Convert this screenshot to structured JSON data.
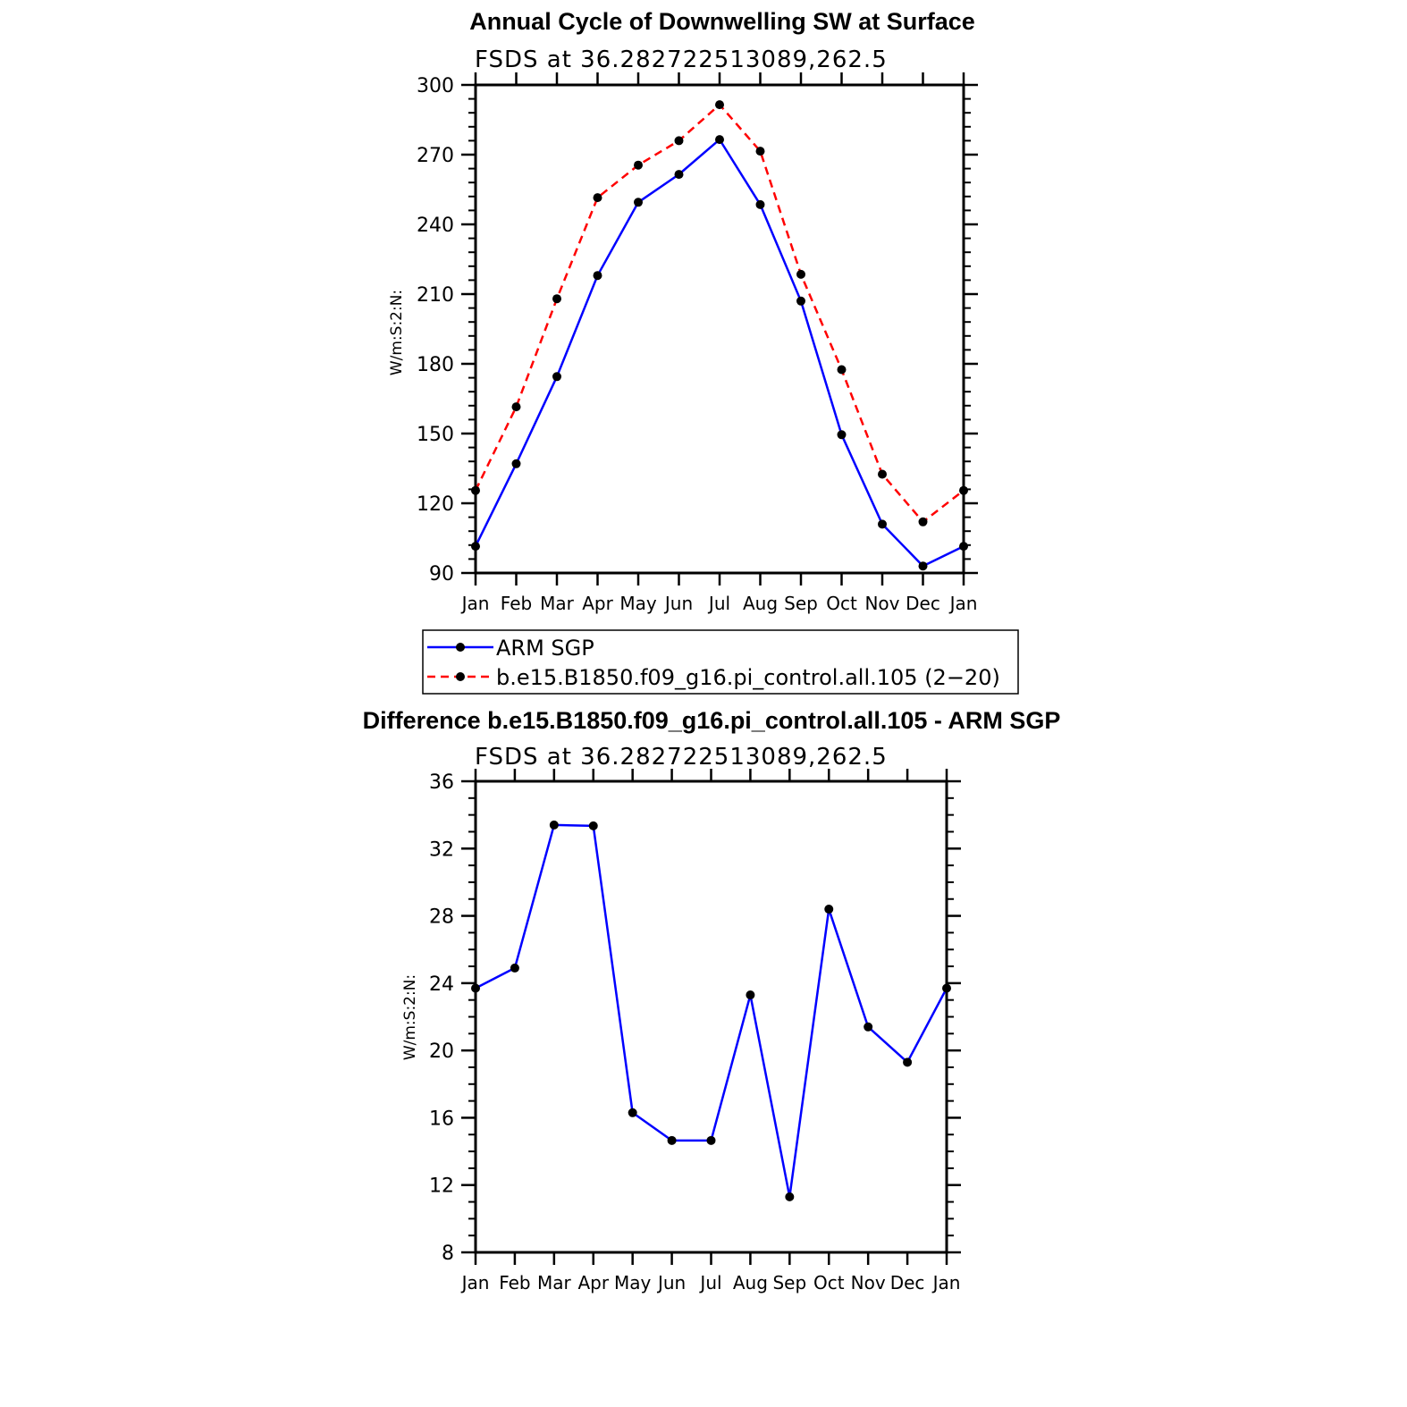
{
  "chart_data": [
    {
      "type": "line",
      "title": "Annual Cycle of Downwelling SW at Surface",
      "subtitle": "FSDS at 36.282722513089,262.5",
      "xlabel": "",
      "ylabel": "W/m:S:2:N:",
      "ylim": [
        90,
        300
      ],
      "yticks": [
        "90",
        "120",
        "150",
        "180",
        "210",
        "240",
        "270",
        "300"
      ],
      "categories": [
        "Jan",
        "Feb",
        "Mar",
        "Apr",
        "May",
        "Jun",
        "Jul",
        "Aug",
        "Sep",
        "Oct",
        "Nov",
        "Dec",
        "Jan"
      ],
      "series": [
        {
          "name": "ARM SGP",
          "color": "#0000ff",
          "dash": "solid",
          "values": [
            101.5,
            137,
            174.5,
            218,
            249.5,
            261.5,
            276.5,
            248.5,
            207,
            149.5,
            111,
            93,
            101.5
          ]
        },
        {
          "name": "b.e15.B1850.f09_g16.pi_control.all.105 (2−20)",
          "color": "#ff0000",
          "dash": "dashed",
          "values": [
            125.5,
            161.5,
            208,
            251.5,
            265.5,
            276,
            291.5,
            271.5,
            218.5,
            177.5,
            132.5,
            112,
            125.5
          ]
        }
      ],
      "grid": false,
      "legend": "below"
    },
    {
      "type": "line",
      "title": "Difference b.e15.B1850.f09_g16.pi_control.all.105 - ARM SGP",
      "subtitle": "FSDS at 36.282722513089,262.5",
      "xlabel": "",
      "ylabel": "W/m:S:2:N:",
      "ylim": [
        8,
        36
      ],
      "yticks": [
        "8",
        "12",
        "16",
        "20",
        "24",
        "28",
        "32",
        "36"
      ],
      "categories": [
        "Jan",
        "Feb",
        "Mar",
        "Apr",
        "May",
        "Jun",
        "Jul",
        "Aug",
        "Sep",
        "Oct",
        "Nov",
        "Dec",
        "Jan"
      ],
      "series": [
        {
          "color": "#0000ff",
          "dash": "solid",
          "values": [
            23.7,
            24.9,
            33.4,
            33.35,
            16.3,
            14.65,
            14.65,
            23.3,
            11.3,
            28.4,
            21.4,
            19.3,
            23.7
          ]
        }
      ],
      "grid": false,
      "legend": "none"
    }
  ]
}
